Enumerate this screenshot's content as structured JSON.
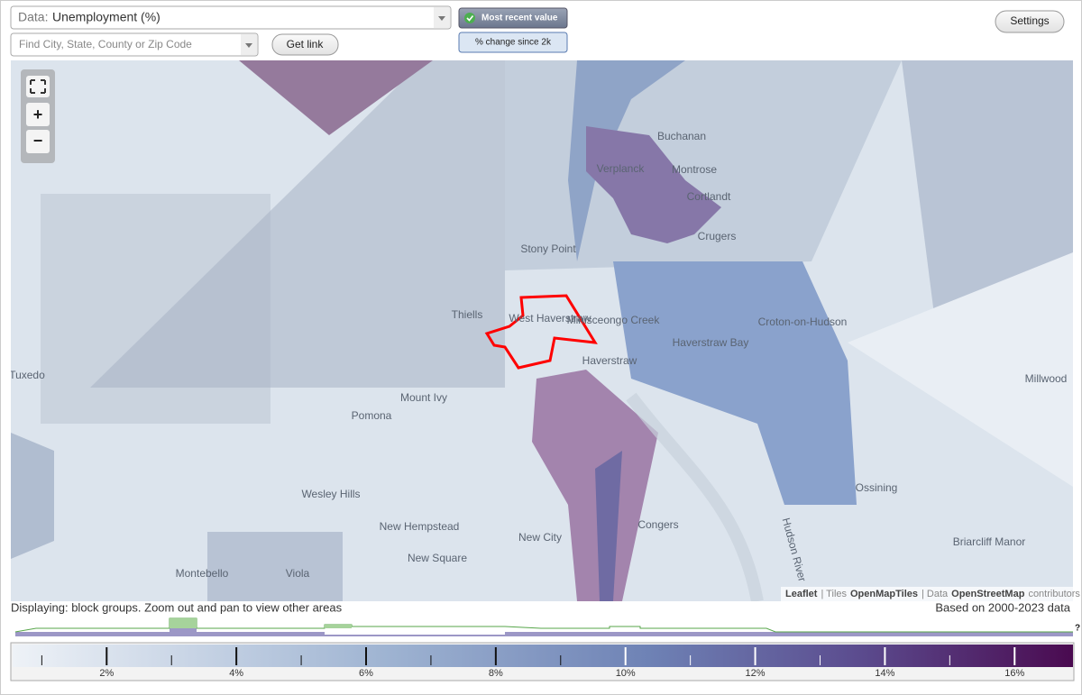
{
  "controls": {
    "data_label": "Data:",
    "data_value": "Unemployment (%)",
    "search_placeholder": "Find City, State, County or Zip Code",
    "get_link": "Get link",
    "most_recent": "Most recent value",
    "change": "% change since 2k",
    "settings": "Settings",
    "zoom_in": "+",
    "zoom_out": "−"
  },
  "map": {
    "places": [
      "Buchanan",
      "Verplanck",
      "Montrose",
      "Cortlandt",
      "Crugers",
      "Stony Point",
      "Thiells",
      "West Haverstraw",
      "Haverstraw",
      "Haverstraw Bay",
      "Minisceongo Creek",
      "Croton-on-Hudson",
      "Pomona",
      "Mount Ivy",
      "Tuxedo",
      "Millwood",
      "Ossining",
      "Wesley Hills",
      "New Hempstead",
      "New City",
      "Congers",
      "New Square",
      "Viola",
      "Montebello",
      "Briarcliff Manor",
      "Hudson River"
    ],
    "attribution": [
      "Leaflet",
      "| Tiles",
      "OpenMapTiles",
      "| Data",
      "OpenStreetMap",
      "contributors"
    ]
  },
  "status": {
    "displaying": "Displaying: block groups. Zoom out and pan to view other areas",
    "based_on": "Based on 2000-2023 data",
    "help": "?"
  },
  "legend": {
    "lim": [
      0.55,
      16.9
    ],
    "ticks": [
      {
        "value": 2,
        "label": "2%"
      },
      {
        "value": 4,
        "label": "4%"
      },
      {
        "value": 6,
        "label": "6%"
      },
      {
        "value": 8,
        "label": "8%"
      },
      {
        "value": 10,
        "label": "10%"
      },
      {
        "value": 12,
        "label": "12%"
      },
      {
        "value": 14,
        "label": "14%"
      },
      {
        "value": 16,
        "label": "16%"
      }
    ],
    "minor_ticks": [
      1,
      3,
      5,
      7,
      9,
      11,
      13,
      15
    ]
  }
}
